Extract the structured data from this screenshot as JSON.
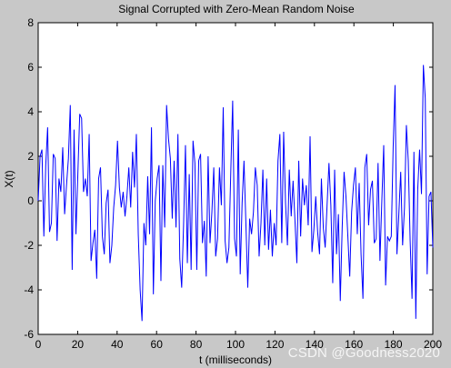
{
  "watermark": "CSDN @Goodness2020",
  "colors": {
    "figure_background": "#c8c8c8",
    "axes_background": "#ffffff",
    "series_color": "#0000ff"
  },
  "chart_data": {
    "type": "line",
    "title": "Signal Corrupted with Zero-Mean Random Noise",
    "xlabel": "t (milliseconds)",
    "ylabel": "X(t)",
    "xlim": [
      0,
      200
    ],
    "ylim": [
      -6,
      8
    ],
    "xticks": [
      0,
      20,
      40,
      60,
      80,
      100,
      120,
      140,
      160,
      180,
      200
    ],
    "yticks": [
      -6,
      -4,
      -2,
      0,
      2,
      4,
      6,
      8
    ],
    "grid": false,
    "series": [
      {
        "values": [
          0.0,
          2.0,
          2.3,
          -1.6,
          1.6,
          3.3,
          -1.4,
          -1.0,
          2.1,
          1.9,
          -1.8,
          1.0,
          0.4,
          2.4,
          -0.6,
          0.7,
          1.9,
          4.3,
          -3.1,
          3.2,
          -1.5,
          1.2,
          3.9,
          3.7,
          0.4,
          1.0,
          0.2,
          3.0,
          -2.7,
          -1.9,
          -1.3,
          -3.5,
          1.0,
          1.5,
          -1.6,
          -2.4,
          -0.1,
          0.5,
          -2.8,
          -2.0,
          -0.3,
          0.7,
          2.7,
          0.6,
          -0.3,
          0.4,
          -0.7,
          0.2,
          1.5,
          -0.3,
          2.2,
          0.6,
          3.0,
          -1.5,
          -4.0,
          -5.4,
          -1.0,
          -2.0,
          1.1,
          -1.5,
          3.3,
          -4.2,
          0.0,
          1.0,
          1.6,
          -3.6,
          1.6,
          -1.2,
          4.3,
          2.8,
          1.9,
          -0.8,
          1.8,
          -1.2,
          3.0,
          -2.6,
          -3.9,
          -1.1,
          2.5,
          -2.8,
          1.2,
          -3.1,
          2.7,
          1.7,
          -3.1,
          1.8,
          2.1,
          -1.9,
          -0.9,
          -3.4,
          2.0,
          -1.9,
          -0.5,
          1.5,
          -2.5,
          -1.7,
          1.5,
          -0.2,
          4.2,
          -1.8,
          -2.8,
          -2.1,
          1.3,
          4.5,
          -1.7,
          -2.5,
          3.2,
          -3.3,
          -0.1,
          1.8,
          -1.0,
          -3.9,
          -0.8,
          -1.5,
          -0.5,
          1.5,
          0.7,
          -2.5,
          -1.0,
          1.4,
          -2.0,
          1.0,
          -2.2,
          -0.4,
          -2.5,
          -1.0,
          -2.0,
          1.8,
          3.0,
          -1.9,
          3.1,
          -0.1,
          -2.0,
          1.4,
          -0.7,
          0.9,
          -0.9,
          -2.8,
          1.8,
          -1.6,
          1.0,
          -0.2,
          0.7,
          -1.1,
          2.9,
          -2.3,
          -1.3,
          0.2,
          -1.4,
          -2.4,
          1.0,
          -1.2,
          -2.1,
          -0.2,
          1.7,
          -0.2,
          -3.7,
          1.4,
          -2.4,
          -0.6,
          -4.5,
          -1.2,
          1.3,
          0.2,
          -1.6,
          -3.4,
          -0.5,
          0.7,
          1.5,
          -1.5,
          0.8,
          -2.4,
          -4.4,
          1.5,
          2.1,
          -1.1,
          0.5,
          0.9,
          -1.9,
          -1.7,
          1.7,
          -2.7,
          0.0,
          2.5,
          -3.8,
          -1.6,
          -1.8,
          -1.6,
          2.4,
          5.2,
          -2.4,
          -0.6,
          1.3,
          -2.0,
          -0.3,
          3.4,
          1.8,
          -1.8,
          -4.4,
          2.2,
          -5.3,
          0.5,
          2.3,
          0.3,
          6.1,
          4.6,
          -3.3,
          0.2,
          0.4,
          -2.1
        ]
      }
    ]
  }
}
